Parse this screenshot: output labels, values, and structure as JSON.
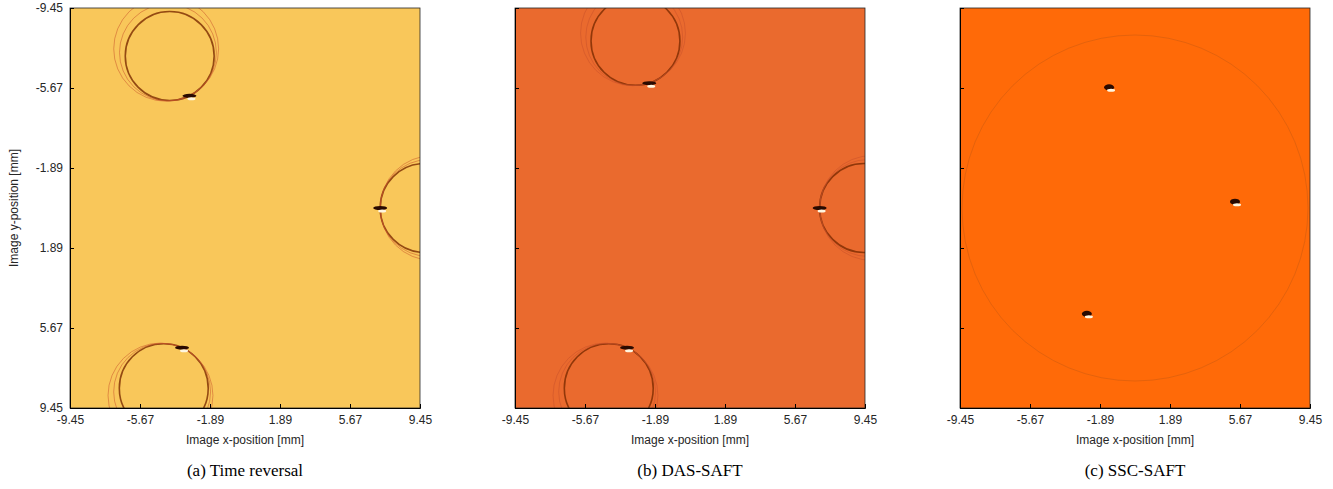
{
  "chart_data": [
    {
      "type": "image",
      "title": "(a) Time reversal",
      "xlabel": "Image x-position [mm]",
      "ylabel": "Image y-position [mm]",
      "xlim": [
        -9.45,
        9.45
      ],
      "xticks": [
        -9.45,
        -5.67,
        -1.89,
        1.89,
        5.67,
        9.45
      ],
      "ylim": [
        -9.45,
        9.45
      ],
      "yticks": [
        -9.45,
        -5.67,
        -1.89,
        1.89,
        5.67,
        9.45
      ],
      "color": "#f9c75a",
      "marker": "arc",
      "reflectors": [
        {
          "x": -3.0,
          "y": -5.3
        },
        {
          "x": 7.3,
          "y": 0.0
        },
        {
          "x": -3.4,
          "y": 6.6
        }
      ]
    },
    {
      "type": "image",
      "title": "(b) DAS-SAFT",
      "xlabel": "Image x-position [mm]",
      "xlim": [
        -9.45,
        9.45
      ],
      "xticks": [
        -9.45,
        -5.67,
        -1.89,
        1.89,
        5.67,
        9.45
      ],
      "ylim": [
        -9.45,
        9.45
      ],
      "yticks": [
        -9.45,
        -5.67,
        -1.89,
        1.89,
        5.67,
        9.45
      ],
      "color": "#ea6a2e",
      "marker": "arc",
      "tick_labels": "x",
      "reflectors": [
        {
          "x": -2.2,
          "y": -5.9
        },
        {
          "x": 7.0,
          "y": 0.0
        },
        {
          "x": -3.4,
          "y": 6.6
        }
      ]
    },
    {
      "type": "image",
      "title": "(c) SSC-SAFT",
      "xlabel": "Image x-position [mm]",
      "xlim": [
        -9.45,
        9.45
      ],
      "xticks": [
        -9.45,
        -5.67,
        -1.89,
        1.89,
        5.67,
        9.45
      ],
      "ylim": [
        -9.45,
        9.45
      ],
      "yticks": [
        -9.45,
        -5.67,
        -1.89,
        1.89,
        5.67,
        9.45
      ],
      "color": "#ff6a08",
      "marker": "blob",
      "tick_labels": "x",
      "reflectors": [
        {
          "x": -1.4,
          "y": -5.7
        },
        {
          "x": 5.4,
          "y": -0.3
        },
        {
          "x": -2.6,
          "y": 5.0
        }
      ]
    }
  ]
}
